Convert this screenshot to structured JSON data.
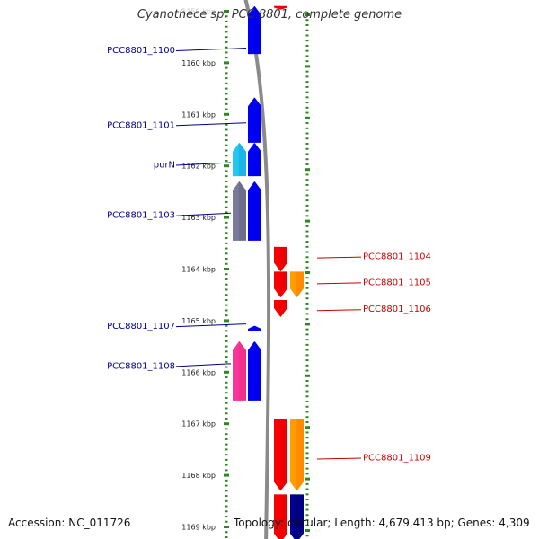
{
  "title": "Cyanothece sp. PCC 8801, complete genome",
  "accession": "Accession: NC_011726",
  "topology": "Topology: circular; Length: 4,679,413 bp; Genes: 4,309",
  "colors": {
    "background": "#ffffff",
    "scale_ticks": "#2a8a1e",
    "backbone": "#8a8a8a",
    "label_left": "#00008b",
    "label_right": "#cc0000",
    "gene_blue": "#0000ee",
    "gene_cyan": "#1cb4e6",
    "gene_gray": "#6e6e8c",
    "gene_red": "#ee0000",
    "gene_orange": "#ff8c00",
    "gene_pink": "#f0308c",
    "gene_navy": "#000080"
  },
  "scale": {
    "start_kbp": 1159,
    "end_kbp": 1169,
    "unit": "kbp",
    "ticks": [
      {
        "kbp": 1159,
        "label": "1159 kbp"
      },
      {
        "kbp": 1160,
        "label": "1160 kbp"
      },
      {
        "kbp": 1161,
        "label": "1161 kbp"
      },
      {
        "kbp": 1162,
        "label": "1162 kbp"
      },
      {
        "kbp": 1163,
        "label": "1163 kbp"
      },
      {
        "kbp": 1164,
        "label": "1164 kbp"
      },
      {
        "kbp": 1165,
        "label": "1165 kbp"
      },
      {
        "kbp": 1166,
        "label": "1166 kbp"
      },
      {
        "kbp": 1167,
        "label": "1167 kbp"
      },
      {
        "kbp": 1168,
        "label": "1168 kbp"
      },
      {
        "kbp": 1169,
        "label": "1169 kbp"
      }
    ]
  },
  "genes": [
    {
      "name": "",
      "side": "right",
      "lane": 1,
      "start_kbp": 1158.9,
      "end_kbp": 1158.95,
      "color": "gene_red",
      "dir": "down"
    },
    {
      "name": "PCC8801_1100",
      "side": "left",
      "lane": 2,
      "start_kbp": 1158.9,
      "end_kbp": 1159.83,
      "color": "gene_blue",
      "dir": "up",
      "label_kbp": 1159.75
    },
    {
      "name": "PCC8801_1101",
      "side": "left",
      "lane": 2,
      "start_kbp": 1160.67,
      "end_kbp": 1161.55,
      "color": "gene_blue",
      "dir": "up",
      "label_kbp": 1161.2
    },
    {
      "name": "purN",
      "side": "left",
      "lane": 1,
      "start_kbp": 1161.55,
      "end_kbp": 1162.2,
      "color": "gene_cyan",
      "dir": "up",
      "label_kbp": 1161.97
    },
    {
      "name": "",
      "side": "left",
      "lane": 2,
      "start_kbp": 1161.55,
      "end_kbp": 1162.2,
      "color": "gene_blue",
      "dir": "up"
    },
    {
      "name": "PCC8801_1103",
      "side": "left",
      "lane": 1,
      "start_kbp": 1162.3,
      "end_kbp": 1163.45,
      "color": "gene_gray",
      "dir": "up",
      "label_kbp": 1162.95
    },
    {
      "name": "",
      "side": "left",
      "lane": 2,
      "start_kbp": 1162.3,
      "end_kbp": 1163.45,
      "color": "gene_blue",
      "dir": "up"
    },
    {
      "name": "PCC8801_1104",
      "side": "right",
      "lane": 1,
      "start_kbp": 1163.57,
      "end_kbp": 1164.05,
      "color": "gene_red",
      "dir": "down",
      "label_kbp": 1163.75
    },
    {
      "name": "PCC8801_1105",
      "side": "right",
      "lane": 1,
      "start_kbp": 1164.05,
      "end_kbp": 1164.55,
      "color": "gene_red",
      "dir": "down",
      "label_kbp": 1164.25
    },
    {
      "name": "",
      "side": "right",
      "lane": 2,
      "start_kbp": 1164.05,
      "end_kbp": 1164.55,
      "color": "gene_orange",
      "dir": "down"
    },
    {
      "name": "PCC8801_1106",
      "side": "right",
      "lane": 1,
      "start_kbp": 1164.6,
      "end_kbp": 1164.93,
      "color": "gene_red",
      "dir": "down",
      "label_kbp": 1164.77
    },
    {
      "name": "PCC8801_1107",
      "side": "left",
      "lane": 2,
      "start_kbp": 1165.1,
      "end_kbp": 1165.2,
      "color": "gene_blue",
      "dir": "up",
      "label_kbp": 1165.1
    },
    {
      "name": "PCC8801_1108",
      "side": "left",
      "lane": 1,
      "start_kbp": 1165.4,
      "end_kbp": 1166.55,
      "color": "gene_pink",
      "dir": "up",
      "label_kbp": 1165.87
    },
    {
      "name": "",
      "side": "left",
      "lane": 2,
      "start_kbp": 1165.4,
      "end_kbp": 1166.55,
      "color": "gene_blue",
      "dir": "up"
    },
    {
      "name": "PCC8801_1109",
      "side": "right",
      "lane": 1,
      "start_kbp": 1166.9,
      "end_kbp": 1168.3,
      "color": "gene_red",
      "dir": "down",
      "label_kbp": 1167.65
    },
    {
      "name": "",
      "side": "right",
      "lane": 2,
      "start_kbp": 1166.9,
      "end_kbp": 1168.3,
      "color": "gene_orange",
      "dir": "down"
    },
    {
      "name": "",
      "side": "right",
      "lane": 1,
      "start_kbp": 1168.37,
      "end_kbp": 1169.3,
      "color": "gene_red",
      "dir": "down"
    },
    {
      "name": "",
      "side": "right",
      "lane": 2,
      "start_kbp": 1168.37,
      "end_kbp": 1169.3,
      "color": "gene_navy",
      "dir": "down"
    }
  ]
}
